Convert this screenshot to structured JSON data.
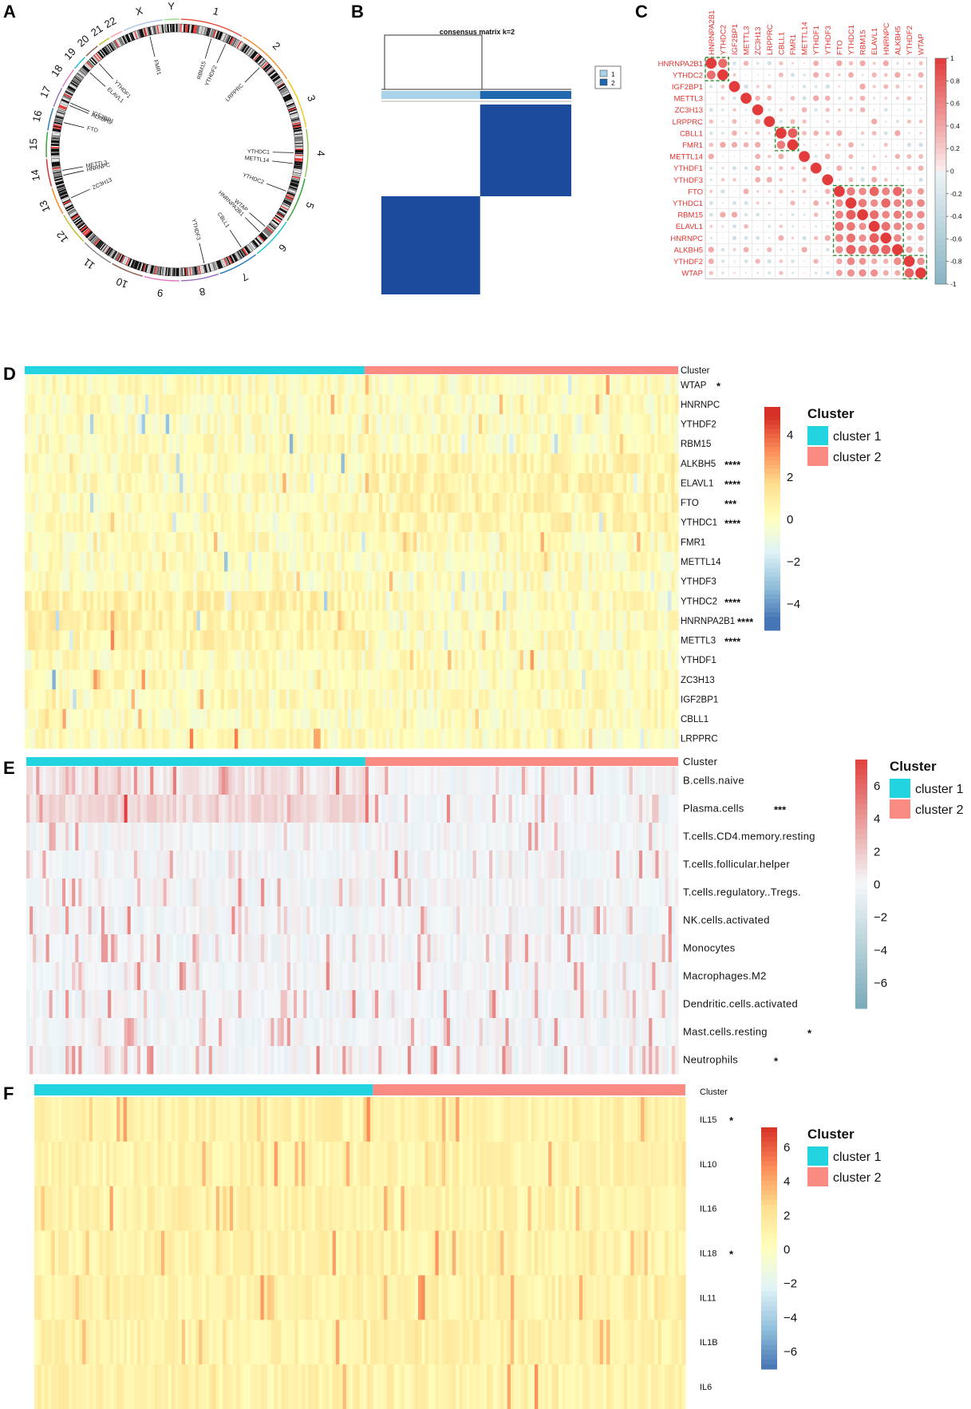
{
  "chart_data": [
    {
      "panel": "A",
      "type": "other",
      "description_type": "circos",
      "chromosomes": [
        "1",
        "2",
        "3",
        "4",
        "5",
        "6",
        "7",
        "8",
        "9",
        "10",
        "11",
        "12",
        "13",
        "14",
        "15",
        "16",
        "17",
        "18",
        "19",
        "20",
        "21",
        "22",
        "X",
        "Y"
      ],
      "genes": [
        "YTHDF2",
        "RBM15",
        "FMR1",
        "LRPPRC",
        "YTHDF1",
        "ELAVL1",
        "IGF2BP1",
        "ALKBH5",
        "FTO",
        "YTHDC1",
        "METTL14",
        "YTHDC2",
        "METTL3",
        "HNRNPC",
        "ZC3H13",
        "WTAP",
        "HNRNPA2B1",
        "CBLL1",
        "YTHDF3"
      ]
    },
    {
      "panel": "B",
      "type": "heatmap",
      "title": "consensus matrix k=2",
      "clusters": [
        "1",
        "2"
      ],
      "cluster_colors": [
        "#a9d3e8",
        "#2167ad"
      ],
      "cluster_fraction": [
        0.52,
        0.48
      ]
    },
    {
      "panel": "C",
      "type": "heatmap",
      "genes": [
        "HNRNPA2B1",
        "YTHDC2",
        "IGF2BP1",
        "METTL3",
        "ZC3H13",
        "LRPPRC",
        "CBLL1",
        "FMR1",
        "METTL14",
        "YTHDF1",
        "YTHDF3",
        "FTO",
        "YTHDC1",
        "RBM15",
        "ELAVL1",
        "HNRNPC",
        "ALKBH5",
        "YTHDF2",
        "WTAP"
      ],
      "colorbar_ticks": [
        "1",
        "0.8",
        "0.6",
        "0.4",
        "0.2",
        "0",
        "-0.2",
        "-0.4",
        "-0.6",
        "-0.8",
        "-1"
      ],
      "boxed_groups": [
        [
          0,
          1
        ],
        [
          6,
          7
        ],
        [
          11,
          16
        ],
        [
          17,
          18
        ]
      ]
    },
    {
      "panel": "D",
      "type": "heatmap",
      "cluster_label": "Cluster",
      "rows": [
        {
          "name": "WTAP",
          "sig": "*"
        },
        {
          "name": "HNRNPC",
          "sig": ""
        },
        {
          "name": "YTHDF2",
          "sig": ""
        },
        {
          "name": "RBM15",
          "sig": ""
        },
        {
          "name": "ALKBH5",
          "sig": "****"
        },
        {
          "name": "ELAVL1",
          "sig": "****"
        },
        {
          "name": "FTO",
          "sig": "***"
        },
        {
          "name": "YTHDC1",
          "sig": "****"
        },
        {
          "name": "FMR1",
          "sig": ""
        },
        {
          "name": "METTL14",
          "sig": ""
        },
        {
          "name": "YTHDF3",
          "sig": ""
        },
        {
          "name": "YTHDC2",
          "sig": "****"
        },
        {
          "name": "HNRNPA2B1",
          "sig": "****"
        },
        {
          "name": "METTL3",
          "sig": "****"
        },
        {
          "name": "YTHDF1",
          "sig": ""
        },
        {
          "name": "ZC3H13",
          "sig": ""
        },
        {
          "name": "IGF2BP1",
          "sig": ""
        },
        {
          "name": "CBLL1",
          "sig": ""
        },
        {
          "name": "LRPPRC",
          "sig": ""
        }
      ],
      "colorbar_ticks": [
        "4",
        "2",
        "0",
        "−2",
        "−4"
      ],
      "legend_title": "Cluster",
      "legend_items": [
        "cluster 1",
        "cluster 2"
      ],
      "cluster_split": 0.52
    },
    {
      "panel": "E",
      "type": "heatmap",
      "cluster_label": "Cluster",
      "rows": [
        {
          "name": "B.cells.naive",
          "sig": ""
        },
        {
          "name": "Plasma.cells",
          "sig": "***"
        },
        {
          "name": "T.cells.CD4.memory.resting",
          "sig": ""
        },
        {
          "name": "T.cells.follicular.helper",
          "sig": ""
        },
        {
          "name": "T.cells.regulatory..Tregs.",
          "sig": ""
        },
        {
          "name": "NK.cells.activated",
          "sig": ""
        },
        {
          "name": "Monocytes",
          "sig": ""
        },
        {
          "name": "Macrophages.M2",
          "sig": ""
        },
        {
          "name": "Dendritic.cells.activated",
          "sig": ""
        },
        {
          "name": "Mast.cells.resting",
          "sig": "*"
        },
        {
          "name": "Neutrophils",
          "sig": "*"
        }
      ],
      "colorbar_ticks": [
        "6",
        "4",
        "2",
        "0",
        "−2",
        "−4",
        "−6"
      ],
      "legend_title": "Cluster",
      "legend_items": [
        "cluster 1",
        "cluster 2"
      ],
      "cluster_split": 0.52
    },
    {
      "panel": "F",
      "type": "heatmap",
      "cluster_label": "Cluster",
      "rows": [
        {
          "name": "IL15",
          "sig": "*"
        },
        {
          "name": "IL10",
          "sig": ""
        },
        {
          "name": "IL16",
          "sig": ""
        },
        {
          "name": "IL18",
          "sig": "*"
        },
        {
          "name": "IL11",
          "sig": ""
        },
        {
          "name": "IL1B",
          "sig": ""
        },
        {
          "name": "IL6",
          "sig": ""
        }
      ],
      "colorbar_ticks": [
        "6",
        "4",
        "2",
        "0",
        "−2",
        "−4",
        "−6"
      ],
      "legend_title": "Cluster",
      "legend_items": [
        "cluster 1",
        "cluster 2"
      ],
      "cluster_split": 0.52
    }
  ],
  "panel_labels": [
    "A",
    "B",
    "C",
    "D",
    "E",
    "F"
  ],
  "colors": {
    "cluster1": "#22d3e0",
    "cluster2": "#fa8b82",
    "hm_high": "#d73027",
    "hm_mid": "#ffffbf",
    "hm_low": "#4575b4",
    "bwr_high": "#e23b3b",
    "bwr_low": "#87b3c2",
    "consensus_dark": "#1c4a9c"
  }
}
